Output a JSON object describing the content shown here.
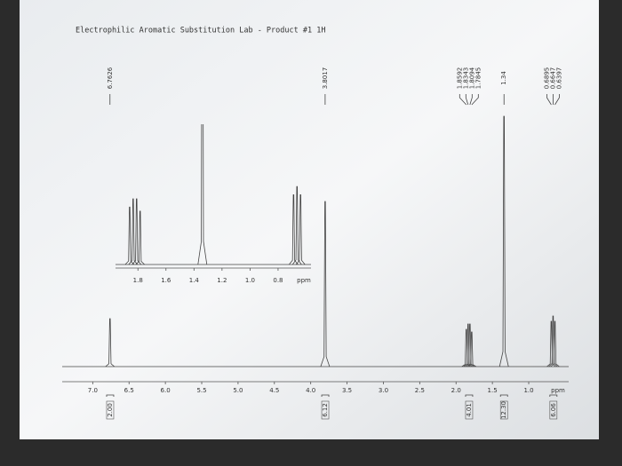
{
  "chart_data": {
    "type": "spectrum",
    "title": "Electrophilic Aromatic Substitution Lab - Product #1 1H",
    "xlabel": "ppm",
    "xlim": [
      7.42,
      0.45
    ],
    "xticks": [
      {
        "value": 7,
        "label": "7.0"
      },
      6.5,
      {
        "value": 6,
        "label": "6.0"
      },
      5.5,
      {
        "value": 5,
        "label": "5.0"
      },
      4.5,
      {
        "value": 4,
        "label": "4.0"
      },
      3.5,
      {
        "value": 3,
        "label": "3.0"
      },
      2.5,
      {
        "value": 2,
        "label": "2.0"
      },
      1.5,
      {
        "value": 1,
        "label": "1.0"
      }
    ],
    "ylim": [
      0,
      100
    ],
    "series": [
      {
        "name": "1H",
        "color": "#444444",
        "x": [
          6.7626,
          3.8017,
          1.8592,
          1.8343,
          1.8094,
          1.7845,
          1.34,
          0.6895,
          0.6647,
          0.6397
        ],
        "values": [
          18,
          62,
          14,
          16,
          16,
          13,
          94,
          17,
          19,
          17
        ]
      }
    ],
    "integrals": {
      "x": [
        6.76,
        3.8,
        1.82,
        1.34,
        0.66
      ],
      "values": [
        2,
        6.12,
        4.01,
        12.3,
        6.06
      ],
      "value_labels": [
        "2.00",
        "6.12",
        "4.01",
        "12.30",
        "6.06"
      ]
    },
    "inset": {
      "xlabel": "ppm",
      "xlim": [
        1.96,
        0.565
      ],
      "xticks": [
        1.8,
        1.6,
        1.4,
        1.2,
        {
          "value": 1,
          "label": "1.0"
        },
        0.8
      ],
      "ylim": [
        0,
        32
      ]
    }
  }
}
